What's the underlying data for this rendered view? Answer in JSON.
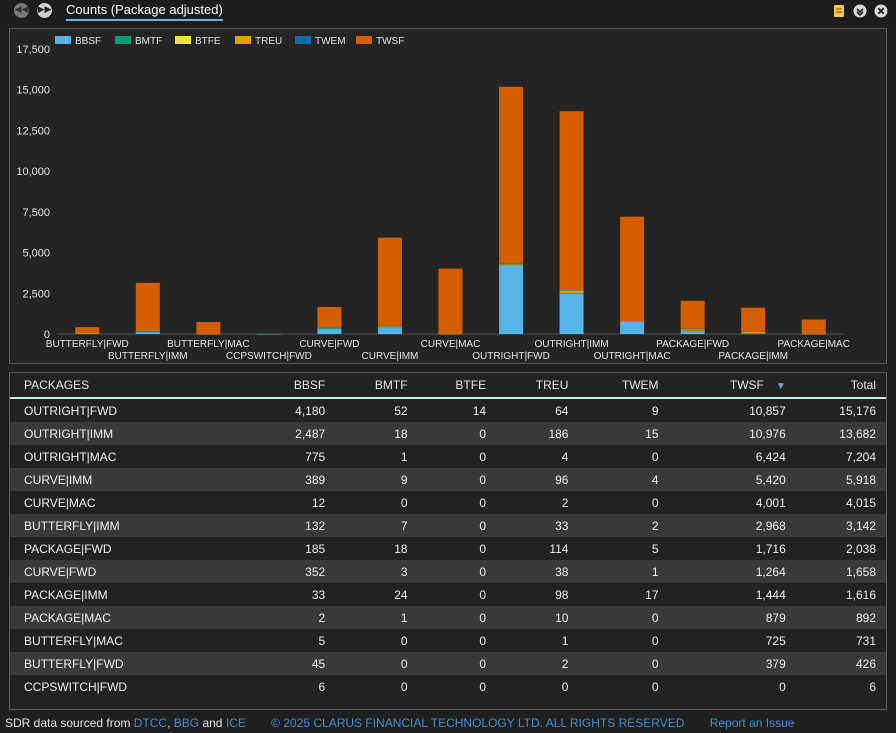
{
  "toolbar": {
    "title": "Counts (Package adjusted)",
    "prev_icon": "rewind-icon",
    "next_icon": "forward-icon",
    "note_icon": "note-icon",
    "collapse_icon": "chevron-down-icon",
    "close_icon": "close-icon"
  },
  "colors": {
    "BBSF": "#56b4e9",
    "BMTF": "#009e73",
    "BTFE": "#f0e442",
    "TREU": "#e69f00",
    "TWEM": "#0072b2",
    "TWSF": "#d55e00"
  },
  "chart_data": {
    "type": "bar",
    "stacked": true,
    "categories": [
      "BUTTERFLY|FWD",
      "BUTTERFLY|IMM",
      "BUTTERFLY|MAC",
      "CCPSWITCH|FWD",
      "CURVE|FWD",
      "CURVE|IMM",
      "CURVE|MAC",
      "OUTRIGHT|FWD",
      "OUTRIGHT|IMM",
      "OUTRIGHT|MAC",
      "PACKAGE|FWD",
      "PACKAGE|IMM",
      "PACKAGE|MAC"
    ],
    "series": [
      {
        "name": "BBSF",
        "values": [
          45,
          132,
          5,
          6,
          352,
          389,
          12,
          4180,
          2487,
          775,
          185,
          33,
          2
        ]
      },
      {
        "name": "BMTF",
        "values": [
          0,
          7,
          0,
          0,
          3,
          9,
          0,
          52,
          18,
          1,
          18,
          24,
          1
        ]
      },
      {
        "name": "BTFE",
        "values": [
          0,
          0,
          0,
          0,
          0,
          0,
          0,
          14,
          0,
          0,
          0,
          0,
          0
        ]
      },
      {
        "name": "TREU",
        "values": [
          2,
          33,
          1,
          0,
          38,
          96,
          2,
          64,
          186,
          4,
          114,
          98,
          10
        ]
      },
      {
        "name": "TWEM",
        "values": [
          0,
          2,
          0,
          0,
          1,
          4,
          0,
          9,
          15,
          0,
          5,
          17,
          0
        ]
      },
      {
        "name": "TWSF",
        "values": [
          379,
          2968,
          725,
          0,
          1264,
          5420,
          4001,
          10857,
          10976,
          6424,
          1716,
          1444,
          879
        ]
      }
    ],
    "ylim": [
      0,
      17500
    ],
    "yticks": [
      "0",
      "2,500",
      "5,000",
      "7,500",
      "10,000",
      "12,500",
      "15,000",
      "17,500"
    ],
    "legend": "top-left",
    "grid": false
  },
  "table": {
    "headers": [
      "PACKAGES",
      "BBSF",
      "BMTF",
      "BTFE",
      "TREU",
      "TWEM",
      "TWSF",
      "Total"
    ],
    "sorted_column": "TWSF",
    "rows": [
      [
        "OUTRIGHT|FWD",
        "4,180",
        "52",
        "14",
        "64",
        "9",
        "10,857",
        "15,176"
      ],
      [
        "OUTRIGHT|IMM",
        "2,487",
        "18",
        "0",
        "186",
        "15",
        "10,976",
        "13,682"
      ],
      [
        "OUTRIGHT|MAC",
        "775",
        "1",
        "0",
        "4",
        "0",
        "6,424",
        "7,204"
      ],
      [
        "CURVE|IMM",
        "389",
        "9",
        "0",
        "96",
        "4",
        "5,420",
        "5,918"
      ],
      [
        "CURVE|MAC",
        "12",
        "0",
        "0",
        "2",
        "0",
        "4,001",
        "4,015"
      ],
      [
        "BUTTERFLY|IMM",
        "132",
        "7",
        "0",
        "33",
        "2",
        "2,968",
        "3,142"
      ],
      [
        "PACKAGE|FWD",
        "185",
        "18",
        "0",
        "114",
        "5",
        "1,716",
        "2,038"
      ],
      [
        "CURVE|FWD",
        "352",
        "3",
        "0",
        "38",
        "1",
        "1,264",
        "1,658"
      ],
      [
        "PACKAGE|IMM",
        "33",
        "24",
        "0",
        "98",
        "17",
        "1,444",
        "1,616"
      ],
      [
        "PACKAGE|MAC",
        "2",
        "1",
        "0",
        "10",
        "0",
        "879",
        "892"
      ],
      [
        "BUTTERFLY|MAC",
        "5",
        "0",
        "0",
        "1",
        "0",
        "725",
        "731"
      ],
      [
        "BUTTERFLY|FWD",
        "45",
        "0",
        "0",
        "2",
        "0",
        "379",
        "426"
      ],
      [
        "CCPSWITCH|FWD",
        "6",
        "0",
        "0",
        "0",
        "0",
        "0",
        "6"
      ]
    ]
  },
  "footer": {
    "prefix": "SDR data sourced from",
    "link1": "DTCC",
    "sep1": ",",
    "link2": "BBG",
    "and": "and",
    "link3": "ICE",
    "copyright": "© 2025 CLARUS FINANCIAL TECHNOLOGY LTD. ALL RIGHTS RESERVED",
    "report": "Report an Issue"
  }
}
